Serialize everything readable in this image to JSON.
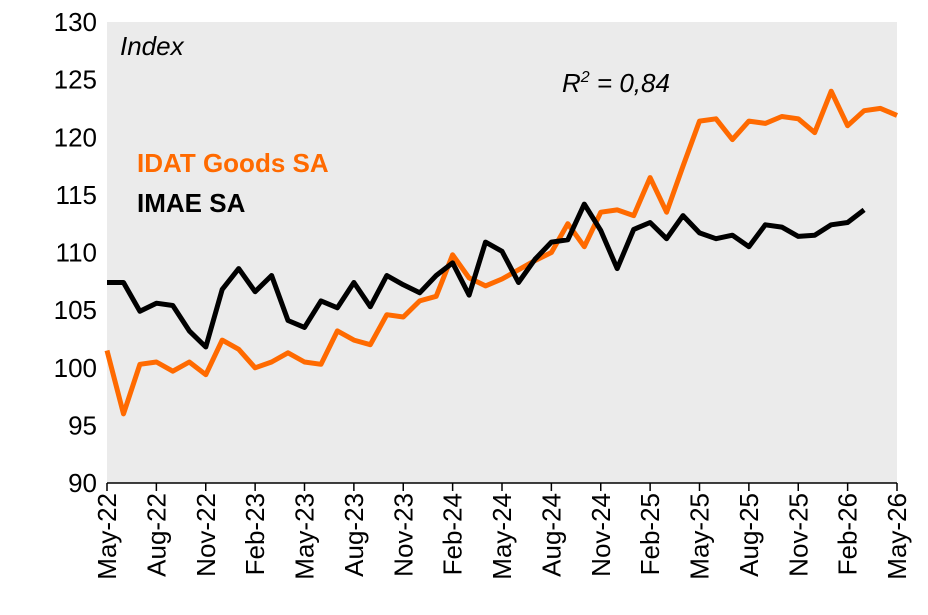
{
  "chart_data": {
    "type": "line",
    "annotations": {
      "unit": "Index",
      "r2": {
        "base": "R",
        "sup": "2",
        "rest": " = 0,84"
      }
    },
    "categories": [
      "May-22",
      null,
      null,
      "Aug-22",
      null,
      null,
      "Nov-22",
      null,
      null,
      "Feb-23",
      null,
      null,
      "May-23",
      null,
      null,
      "Aug-23",
      null,
      null,
      "Nov-23",
      null,
      null,
      "Feb-24",
      null,
      null,
      "May-24",
      null,
      null,
      "Aug-24",
      null,
      null,
      "Nov-24",
      null,
      null,
      "Feb-25",
      null,
      null,
      "May-25",
      null,
      null,
      "Aug-25",
      null,
      null,
      "Nov-25",
      null,
      null,
      "Feb-26",
      null,
      null,
      "May-26"
    ],
    "series": [
      {
        "name": "IDAT Goods SA",
        "color": "#ff6a00",
        "values": [
          101.5,
          96,
          100.3,
          100.5,
          99.7,
          100.5,
          99.4,
          102.4,
          101.6,
          100,
          100.5,
          101.3,
          100.5,
          100.3,
          103.2,
          102.4,
          102,
          104.6,
          104.4,
          105.8,
          106.2,
          109.8,
          107.8,
          107.1,
          107.7,
          108.5,
          109.3,
          110,
          112.5,
          110.5,
          113.5,
          113.7,
          113.2,
          116.5,
          113.5,
          117.5,
          121.4,
          121.6,
          119.8,
          121.4,
          121.2,
          121.8,
          121.6,
          120.4,
          124,
          121,
          122.3,
          122.5,
          121.9
        ]
      },
      {
        "name": "IMAE SA",
        "color": "#000000",
        "values": [
          107.4,
          107.4,
          104.9,
          105.6,
          105.4,
          103.2,
          101.8,
          106.8,
          108.6,
          106.6,
          108,
          104.1,
          103.5,
          105.8,
          105.2,
          107.4,
          105.3,
          108,
          107.2,
          106.5,
          108,
          109.1,
          106.3,
          110.9,
          110.1,
          107.4,
          109.4,
          110.9,
          111.1,
          114.2,
          111.9,
          108.6,
          112,
          112.6,
          111.2,
          113.2,
          111.7,
          111.2,
          111.5,
          110.5,
          112.4,
          112.2,
          111.4,
          111.5,
          112.4,
          112.6,
          113.7,
          null,
          null
        ]
      }
    ],
    "ylim": [
      90,
      130
    ],
    "yticks": [
      90,
      95,
      100,
      105,
      110,
      115,
      120,
      125,
      130
    ],
    "grid": false
  }
}
